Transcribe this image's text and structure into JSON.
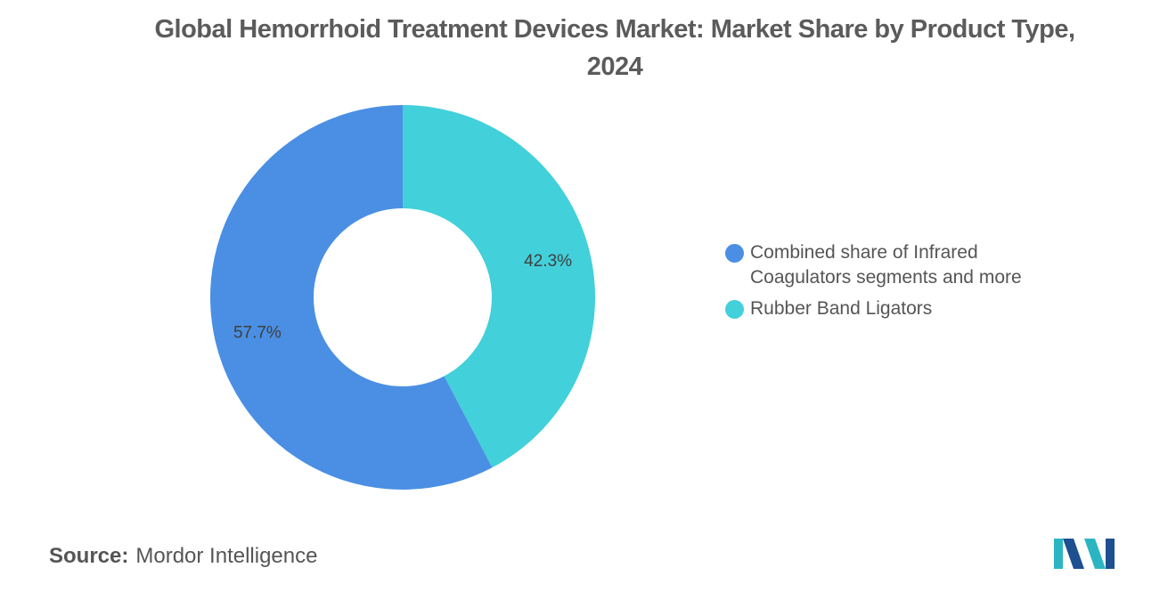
{
  "title_lines": [
    "Global Hemorrhoid Treatment Devices Market: Market Share by Product Type,",
    "2024"
  ],
  "chart_data": {
    "type": "pie",
    "title": "Global Hemorrhoid Treatment Devices Market: Market Share by Product Type, 2024",
    "donut": true,
    "series": [
      {
        "name": "Combined share of Infrared Coagulators segments and more",
        "value": 57.7,
        "label": "57.7%",
        "color": "#4a8fe3"
      },
      {
        "name": "Rubber Band Ligators",
        "value": 42.3,
        "label": "42.3%",
        "color": "#42d0da"
      }
    ],
    "legend_placement": "right"
  },
  "legend": [
    {
      "lines": [
        "Combined share of Infrared",
        "Coagulators segments and more"
      ],
      "color": "#4a8fe3"
    },
    {
      "lines": [
        "Rubber Band Ligators"
      ],
      "color": "#42d0da"
    }
  ],
  "source": {
    "label": "Source:",
    "text": "Mordor Intelligence"
  },
  "logo": {
    "icon": "mordor-intelligence-logo",
    "colors": [
      "#1d4f91",
      "#2bb5c3"
    ]
  }
}
